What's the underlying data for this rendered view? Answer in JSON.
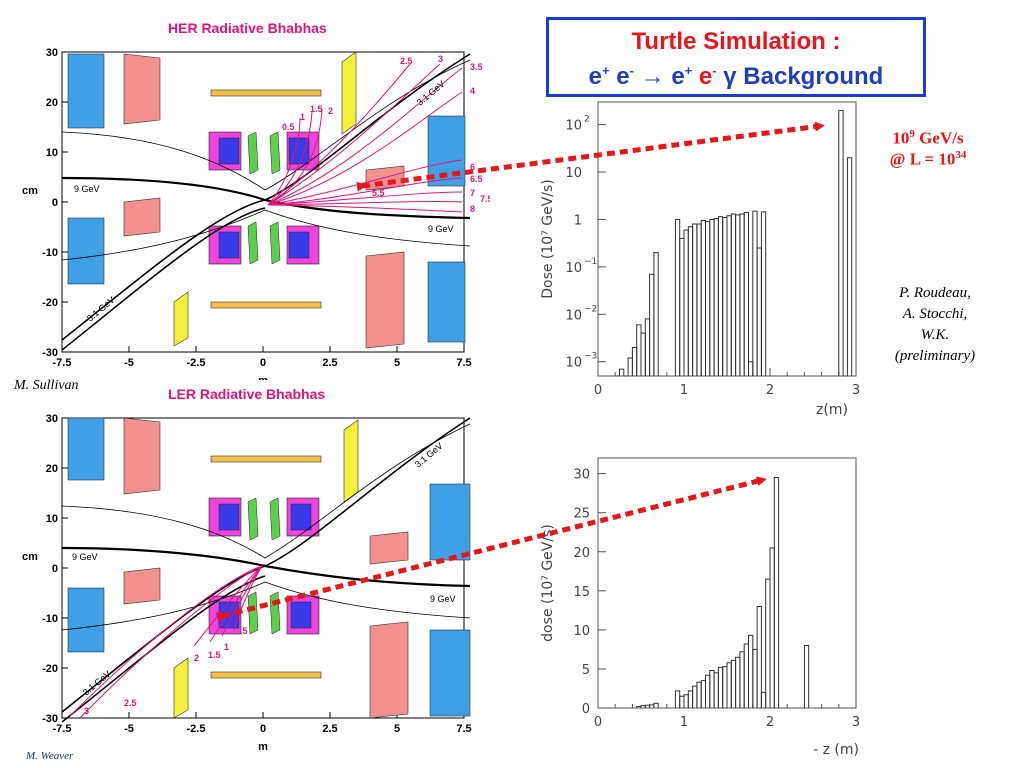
{
  "slide": {
    "title_line1": "Turtle Simulation :",
    "title_line2": {
      "a": "e",
      "a_sup": "+",
      "b": " e",
      "b_sup": "-",
      "arrow": " → ",
      "c": "e",
      "c_sup": "+",
      "d": " e",
      "d_sup": "-",
      "gamma": " γ",
      "rest": " Background"
    },
    "annotation": {
      "line1_base": "10",
      "line1_sup": "9",
      "line1_rest": " GeV/s",
      "line2_base": "@ L = 10",
      "line2_sup": "34"
    },
    "authors": [
      "P. Roudeau,",
      "A. Stocchi,",
      "W.K.",
      "(preliminary)"
    ],
    "credit_top": "M. Sullivan",
    "credit_bottom": "M. Weaver",
    "colors": {
      "title_red": "#e8151b",
      "title_blue": "#1f3fbf",
      "magenta": "#e0147a",
      "arrow_red": "#e8151b"
    }
  },
  "chart_data": [
    {
      "type": "diagram",
      "title": "HER Radiative Bhabhas",
      "xlabel": "m",
      "ylabel": "cm",
      "xlim": [
        -7.5,
        7.5
      ],
      "ylim": [
        -30,
        30
      ],
      "xticks": [
        "-7.5",
        "-5",
        "-2.5",
        "0",
        "2.5",
        "5",
        "7.5"
      ],
      "yticks": [
        "30",
        "20",
        "10",
        "0",
        "-10",
        "-20",
        "-30"
      ],
      "beam_labels": [
        "9 GeV",
        "9 GeV",
        "3.1 GeV",
        "3.1 GeV"
      ],
      "energy_labels": [
        "0.5",
        "1",
        "1.5",
        "2",
        "2.5",
        "3",
        "3.5",
        "4",
        "6",
        "6.5",
        "5.5",
        "7",
        "7.5",
        "8"
      ]
    },
    {
      "type": "diagram",
      "title": "LER Radiative Bhabhas",
      "xlabel": "m",
      "ylabel": "cm",
      "xlim": [
        -7.5,
        7.5
      ],
      "ylim": [
        -30,
        30
      ],
      "xticks": [
        "-7.5",
        "-5",
        "-2.5",
        "0",
        "2.5",
        "5",
        "7.5"
      ],
      "yticks": [
        "30",
        "20",
        "10",
        "0",
        "-10",
        "-20",
        "-30"
      ],
      "beam_labels": [
        "9 GeV",
        "9 GeV",
        "3.1 GeV",
        "3.1 GeV"
      ],
      "energy_labels": [
        "3",
        "2.5",
        "2",
        "1.5",
        "1",
        ".5"
      ]
    },
    {
      "type": "histogram",
      "log_y": true,
      "xlabel": "z(m)",
      "ylabel": "Dose (10⁷ GeV/s)",
      "xlim": [
        0,
        3
      ],
      "ylim": [
        0.0005,
        300
      ],
      "xticks": [
        "0",
        "1",
        "2",
        "3"
      ],
      "ytick_values": [
        0.001,
        0.01,
        0.1,
        1,
        10,
        100
      ],
      "bin_width": 0.05,
      "bins": [
        [
          0.2,
          0.0004
        ],
        [
          0.25,
          0.0007
        ],
        [
          0.3,
          0.0004
        ],
        [
          0.35,
          0.0012
        ],
        [
          0.4,
          0.002
        ],
        [
          0.45,
          0.006
        ],
        [
          0.5,
          0.004
        ],
        [
          0.55,
          0.008
        ],
        [
          0.6,
          0.07
        ],
        [
          0.65,
          0.2
        ],
        [
          0.9,
          1.0
        ],
        [
          0.95,
          0.4
        ],
        [
          1.0,
          0.6
        ],
        [
          1.05,
          0.7
        ],
        [
          1.1,
          0.8
        ],
        [
          1.15,
          0.8
        ],
        [
          1.2,
          0.95
        ],
        [
          1.25,
          0.9
        ],
        [
          1.3,
          1.0
        ],
        [
          1.35,
          1.05
        ],
        [
          1.4,
          1.15
        ],
        [
          1.45,
          1.1
        ],
        [
          1.5,
          1.2
        ],
        [
          1.55,
          1.3
        ],
        [
          1.6,
          1.25
        ],
        [
          1.65,
          1.3
        ],
        [
          1.7,
          1.4
        ],
        [
          1.75,
          0.001
        ],
        [
          1.8,
          1.5
        ],
        [
          1.85,
          0.25
        ],
        [
          1.9,
          1.45
        ],
        [
          2.8,
          200
        ],
        [
          2.85,
          0.0005
        ],
        [
          2.9,
          20
        ]
      ]
    },
    {
      "type": "histogram",
      "xlabel": "- z (m)",
      "ylabel": "dose (10⁷ GeV/s)",
      "xlim": [
        0,
        3
      ],
      "ylim": [
        0,
        32
      ],
      "xticks": [
        "0",
        "1",
        "2",
        "3"
      ],
      "yticks": [
        "0",
        "5",
        "10",
        "15",
        "20",
        "25",
        "30"
      ],
      "bin_width": 0.05,
      "bins": [
        [
          0.45,
          0.2
        ],
        [
          0.5,
          0.3
        ],
        [
          0.55,
          0.35
        ],
        [
          0.6,
          0.4
        ],
        [
          0.65,
          0.6
        ],
        [
          0.9,
          2.2
        ],
        [
          0.95,
          1.5
        ],
        [
          1.0,
          1.7
        ],
        [
          1.05,
          2.2
        ],
        [
          1.1,
          2.8
        ],
        [
          1.15,
          3.3
        ],
        [
          1.2,
          3.5
        ],
        [
          1.25,
          4.2
        ],
        [
          1.3,
          4.8
        ],
        [
          1.35,
          4.5
        ],
        [
          1.4,
          5.2
        ],
        [
          1.45,
          5.3
        ],
        [
          1.5,
          5.8
        ],
        [
          1.55,
          6.1
        ],
        [
          1.6,
          6.5
        ],
        [
          1.65,
          7.2
        ],
        [
          1.7,
          8.2
        ],
        [
          1.75,
          9.3
        ],
        [
          1.8,
          7.5
        ],
        [
          1.85,
          13.0
        ],
        [
          1.9,
          2.0
        ],
        [
          1.95,
          16.5
        ],
        [
          2.0,
          20.5
        ],
        [
          2.05,
          29.5
        ],
        [
          2.4,
          8.0
        ]
      ]
    }
  ]
}
